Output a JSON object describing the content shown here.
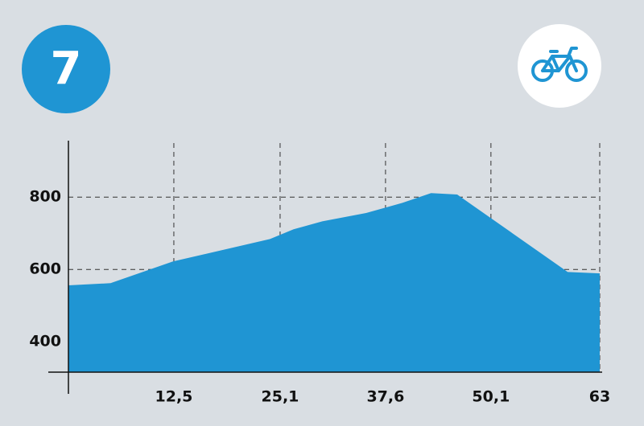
{
  "badge": "7",
  "chart_data": {
    "type": "area",
    "x": [
      0,
      5.0,
      12.4,
      23.9,
      26.7,
      30.1,
      35.3,
      39.6,
      43.0,
      46.1,
      59.2,
      63
    ],
    "values": [
      556,
      562,
      622,
      684,
      711,
      733,
      756,
      784,
      811,
      807,
      593,
      589
    ],
    "color": "#1f95d3",
    "xlim": [
      0,
      63
    ],
    "ylim": [
      316,
      956
    ],
    "yticks": [
      400,
      600,
      800
    ],
    "xticks": [
      {
        "value": 12.5,
        "label": "12,5"
      },
      {
        "value": 25.1,
        "label": "25,1"
      },
      {
        "value": 37.6,
        "label": "37,6"
      },
      {
        "value": 50.1,
        "label": "50,1"
      },
      63
    ],
    "grid": true
  }
}
